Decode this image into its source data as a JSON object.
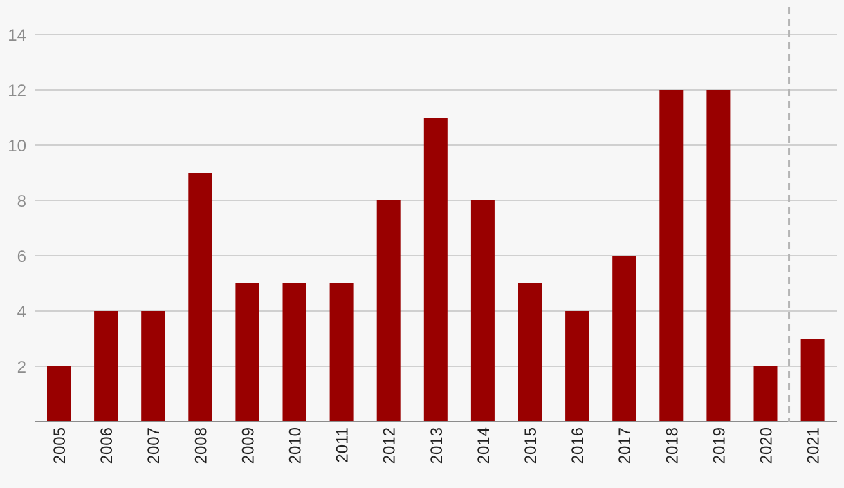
{
  "chart_data": {
    "type": "bar",
    "categories": [
      "2005",
      "2006",
      "2007",
      "2008",
      "2009",
      "2010",
      "2011",
      "2012",
      "2013",
      "2014",
      "2015",
      "2016",
      "2017",
      "2018",
      "2019",
      "2020",
      "2021"
    ],
    "values": [
      2,
      4,
      4,
      9,
      5,
      5,
      5,
      8,
      11,
      8,
      5,
      4,
      6,
      12,
      12,
      2,
      3
    ],
    "y_ticks": [
      2,
      4,
      6,
      8,
      10,
      12,
      14
    ],
    "ylim": [
      0,
      14
    ],
    "grid": true,
    "bar_color": "#990000",
    "vertical_marker_between": [
      "2020",
      "2021"
    ],
    "vertical_marker_style": "dashed"
  }
}
